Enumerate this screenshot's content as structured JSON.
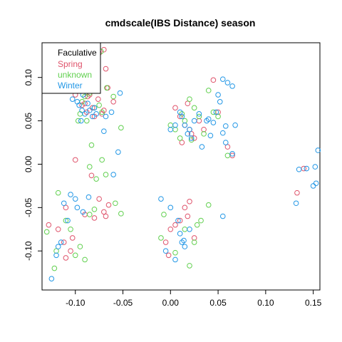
{
  "chart_data": {
    "type": "scatter",
    "title": "cmdscale(IBS Distance) season",
    "xlabel": "",
    "ylabel": "",
    "xlim": [
      -0.135,
      0.157
    ],
    "ylim": [
      -0.145,
      0.14
    ],
    "xticks": [
      -0.1,
      -0.05,
      0.0,
      0.05,
      0.1,
      0.15
    ],
    "xtick_labels": [
      "-0.10",
      "-0.05",
      "0.00",
      "0.05",
      "0.10",
      "0.15"
    ],
    "yticks": [
      -0.1,
      -0.05,
      0.0,
      0.05,
      0.1
    ],
    "ytick_labels": [
      "-0.10",
      "-0.05",
      "0.00",
      "0.05",
      "0.10"
    ],
    "grid": false,
    "legend_position": "top-left",
    "legend": [
      {
        "name": "Faculative",
        "color": "#000000"
      },
      {
        "name": "Spring",
        "color": "#DF536B"
      },
      {
        "name": "unknown",
        "color": "#61D04F"
      },
      {
        "name": "Winter",
        "color": "#2297E6"
      }
    ],
    "series": [
      {
        "name": "Spring",
        "color": "#DF536B",
        "x": [
          -0.075,
          -0.07,
          -0.068,
          -0.098,
          -0.095,
          -0.09,
          -0.085,
          -0.082,
          -0.088,
          -0.076,
          -0.08,
          -0.1,
          -0.092,
          -0.072,
          -0.066,
          -0.06,
          -0.083,
          -0.093,
          -0.087,
          -0.07,
          -0.1,
          -0.083,
          -0.068,
          -0.128,
          -0.118,
          -0.112,
          -0.105,
          -0.11,
          -0.103,
          -0.09,
          -0.08,
          -0.075,
          -0.07,
          -0.065,
          -0.11,
          0.045,
          0.05,
          0.03,
          0.015,
          0.02,
          0.025,
          0.01,
          0.005,
          0.018,
          0.035,
          0.06,
          0.065,
          0.022,
          0.012,
          0.01,
          0.015,
          0.005,
          -0.005,
          0.0,
          0.02,
          0.025,
          -0.002,
          0.018,
          0.133,
          0.14
        ],
        "y": [
          0.128,
          0.132,
          0.11,
          0.09,
          0.085,
          0.07,
          0.08,
          0.065,
          0.06,
          0.075,
          0.055,
          0.08,
          0.095,
          0.058,
          0.088,
          0.072,
          0.085,
          0.068,
          0.078,
          0.062,
          0.005,
          -0.013,
          -0.06,
          -0.07,
          -0.075,
          -0.09,
          -0.1,
          -0.05,
          -0.085,
          -0.058,
          -0.062,
          -0.04,
          -0.055,
          -0.047,
          -0.108,
          0.097,
          0.06,
          0.05,
          0.045,
          0.04,
          0.03,
          0.055,
          0.065,
          0.07,
          0.04,
          0.02,
          0.01,
          0.035,
          0.025,
          -0.065,
          -0.05,
          -0.07,
          -0.09,
          -0.075,
          -0.043,
          -0.085,
          -0.105,
          -0.06,
          -0.033,
          -0.005
        ]
      },
      {
        "name": "unknown",
        "color": "#61D04F",
        "x": [
          -0.073,
          -0.078,
          -0.085,
          -0.09,
          -0.097,
          -0.093,
          -0.083,
          -0.072,
          -0.067,
          -0.08,
          -0.088,
          -0.095,
          -0.052,
          -0.06,
          -0.075,
          -0.083,
          -0.085,
          -0.072,
          -0.068,
          -0.078,
          -0.118,
          -0.12,
          -0.13,
          -0.122,
          -0.1,
          -0.095,
          -0.105,
          -0.11,
          -0.052,
          -0.058,
          -0.09,
          -0.085,
          -0.08,
          0.04,
          0.045,
          0.02,
          0.005,
          0.01,
          0.03,
          0.015,
          0.025,
          0.035,
          0.05,
          0.0,
          0.022,
          0.012,
          0.06,
          0.02,
          0.015,
          -0.01,
          0.025,
          0.005,
          0.028,
          -0.007,
          0.032,
          0.04
        ],
        "y": [
          0.13,
          0.11,
          0.082,
          0.078,
          0.05,
          0.072,
          0.093,
          0.06,
          0.088,
          0.065,
          0.05,
          0.058,
          0.042,
          0.078,
          0.068,
          0.022,
          -0.003,
          0.005,
          -0.012,
          -0.017,
          -0.033,
          -0.1,
          -0.078,
          -0.12,
          -0.105,
          -0.095,
          -0.075,
          -0.065,
          -0.057,
          -0.045,
          -0.11,
          -0.058,
          -0.052,
          0.085,
          0.06,
          0.075,
          0.04,
          0.03,
          0.055,
          0.05,
          0.065,
          0.035,
          0.055,
          0.045,
          0.028,
          0.058,
          0.01,
          -0.117,
          -0.075,
          -0.085,
          -0.09,
          -0.102,
          -0.07,
          -0.058,
          -0.065,
          -0.047
        ]
      },
      {
        "name": "Winter",
        "color": "#2297E6",
        "x": [
          -0.095,
          -0.092,
          -0.098,
          -0.087,
          -0.085,
          -0.09,
          -0.1,
          -0.103,
          -0.096,
          -0.08,
          -0.088,
          -0.082,
          -0.093,
          -0.094,
          -0.07,
          -0.053,
          -0.062,
          -0.068,
          -0.078,
          -0.105,
          -0.112,
          -0.118,
          -0.125,
          -0.108,
          -0.12,
          -0.1,
          -0.115,
          -0.098,
          -0.092,
          -0.06,
          -0.055,
          -0.086,
          0.055,
          0.06,
          0.065,
          0.05,
          0.052,
          0.048,
          0.03,
          0.038,
          0.04,
          0.045,
          0.058,
          0.055,
          0.015,
          0.02,
          0.025,
          0.01,
          0.012,
          0.005,
          0.0,
          0.018,
          0.022,
          0.042,
          0.068,
          0.058,
          0.033,
          0.065,
          0.0,
          0.008,
          0.01,
          0.012,
          0.015,
          0.014,
          -0.005,
          -0.01,
          0.02,
          0.055,
          0.005,
          0.132,
          0.15,
          0.153,
          0.155,
          0.152,
          0.135,
          0.143
        ],
        "y": [
          0.088,
          0.08,
          0.072,
          0.07,
          0.062,
          0.058,
          0.085,
          0.075,
          0.068,
          0.065,
          0.09,
          0.055,
          0.062,
          0.05,
          0.038,
          0.082,
          0.06,
          0.055,
          0.058,
          -0.035,
          -0.045,
          -0.095,
          -0.132,
          -0.065,
          -0.105,
          -0.04,
          -0.09,
          -0.05,
          -0.055,
          -0.012,
          0.014,
          -0.038,
          0.098,
          0.094,
          0.09,
          0.08,
          0.072,
          0.06,
          0.058,
          0.05,
          0.052,
          0.048,
          0.044,
          0.036,
          0.045,
          0.04,
          0.05,
          0.06,
          0.055,
          0.045,
          0.04,
          0.035,
          0.03,
          0.033,
          0.045,
          0.025,
          0.02,
          0.012,
          -0.05,
          -0.065,
          -0.08,
          -0.09,
          -0.095,
          -0.088,
          -0.1,
          -0.04,
          -0.075,
          -0.06,
          -0.11,
          -0.045,
          -0.025,
          -0.022,
          0.016,
          -0.003,
          -0.006,
          -0.005
        ]
      }
    ]
  }
}
